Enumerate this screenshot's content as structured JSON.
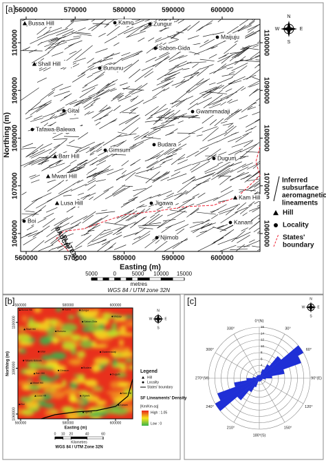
{
  "panel_a": {
    "label": "[a]",
    "x_axis_title": "Easting (m)",
    "y_axis_title": "Northing (m)",
    "x_ticks": [
      560000,
      570000,
      580000,
      590000,
      600000
    ],
    "y_ticks": [
      1060000,
      1070000,
      1080000,
      1090000,
      1100000
    ],
    "places": [
      {
        "name": "Bussa Hill",
        "kind": "hill"
      },
      {
        "name": "Kamo",
        "kind": "locality"
      },
      {
        "name": "Zungur",
        "kind": "locality"
      },
      {
        "name": "Maijuju",
        "kind": "locality"
      },
      {
        "name": "Sabon-Gida",
        "kind": "locality"
      },
      {
        "name": "Shall Hill",
        "kind": "hill"
      },
      {
        "name": "Bununu",
        "kind": "locality"
      },
      {
        "name": "Gital",
        "kind": "locality"
      },
      {
        "name": "Gwammadaji",
        "kind": "locality"
      },
      {
        "name": "Tafawa-Balewa",
        "kind": "locality"
      },
      {
        "name": "Budara",
        "kind": "locality"
      },
      {
        "name": "Gimsum",
        "kind": "locality"
      },
      {
        "name": "Barr Hill",
        "kind": "hill"
      },
      {
        "name": "Dugum",
        "kind": "locality"
      },
      {
        "name": "Mwari Hill",
        "kind": "hill"
      },
      {
        "name": "Kam Hill",
        "kind": "hill"
      },
      {
        "name": "Lusa Hill",
        "kind": "hill"
      },
      {
        "name": "Jigawa",
        "kind": "locality"
      },
      {
        "name": "Boi",
        "kind": "locality"
      },
      {
        "name": "Kanam",
        "kind": "locality"
      },
      {
        "name": "Njimob",
        "kind": "locality"
      }
    ],
    "plateau_label": [
      "BAUCHI",
      "PLATEAU"
    ],
    "compass": {
      "n": "N",
      "e": "E",
      "s": "S",
      "w": "W"
    },
    "legend": {
      "lineaments": [
        "Inferred",
        "subsurface",
        "aeromagnetic",
        "lineaments"
      ],
      "hill": "Hill",
      "locality": "Locality",
      "boundary": [
        "States'",
        "boundary"
      ]
    },
    "scale": {
      "ticks": [
        {
          "value": -5000,
          "label": "5000"
        },
        0,
        5000,
        10000,
        15000
      ],
      "unit": "metres",
      "projection": "WGS 84 / UTM zone 32N"
    }
  },
  "panel_b": {
    "label": "[b]",
    "x_axis_title": "Easting (m)",
    "y_axis_title": "Northing (m)",
    "x_ticks": [
      560000,
      580000,
      600000
    ],
    "y_ticks": [
      1060000,
      1080000,
      1100000
    ],
    "legend": {
      "title": "Legend",
      "hill": "Hill",
      "locality": "Locality",
      "boundary": "States' boundary",
      "density_title": "SF Lineaments' Density",
      "density_unit": "[Km/Km-sq]",
      "high": "High : 1.05",
      "low": "Low : 0"
    },
    "scale": {
      "ticks": [
        0,
        10,
        20,
        40,
        60
      ],
      "unit": "Kilometres",
      "projection": "WGS 84 / UTM Zone 32N"
    }
  },
  "panel_c": {
    "label": "[c]",
    "radial_ticks": [
      2,
      4,
      6,
      8,
      10,
      12,
      14,
      16
    ],
    "bins": [
      0,
      10,
      20,
      30,
      40,
      50,
      60,
      70,
      80,
      90,
      100,
      110,
      120,
      130,
      140,
      150,
      160,
      170,
      180
    ],
    "values": [
      1,
      1,
      3,
      5,
      9,
      16,
      14,
      8,
      4,
      2,
      1,
      1,
      1,
      1,
      1,
      1,
      1,
      1
    ],
    "color": "#1f2fd6",
    "angle_labels": [
      {
        "value": 0,
        "label": "0°(N)"
      },
      {
        "value": 30,
        "label": "30°"
      },
      {
        "value": 60,
        "label": "60°"
      },
      {
        "value": 90,
        "label": "90°(E)"
      },
      {
        "value": 120,
        "label": "120°"
      },
      {
        "value": 150,
        "label": "150°"
      },
      {
        "value": 180,
        "label": "180°(S)"
      },
      {
        "value": 210,
        "label": "210°"
      },
      {
        "value": 240,
        "label": "240°"
      },
      {
        "value": 270,
        "label": "270°(W)"
      },
      {
        "value": 300,
        "label": "300°"
      },
      {
        "value": 330,
        "label": "330°"
      }
    ]
  }
}
